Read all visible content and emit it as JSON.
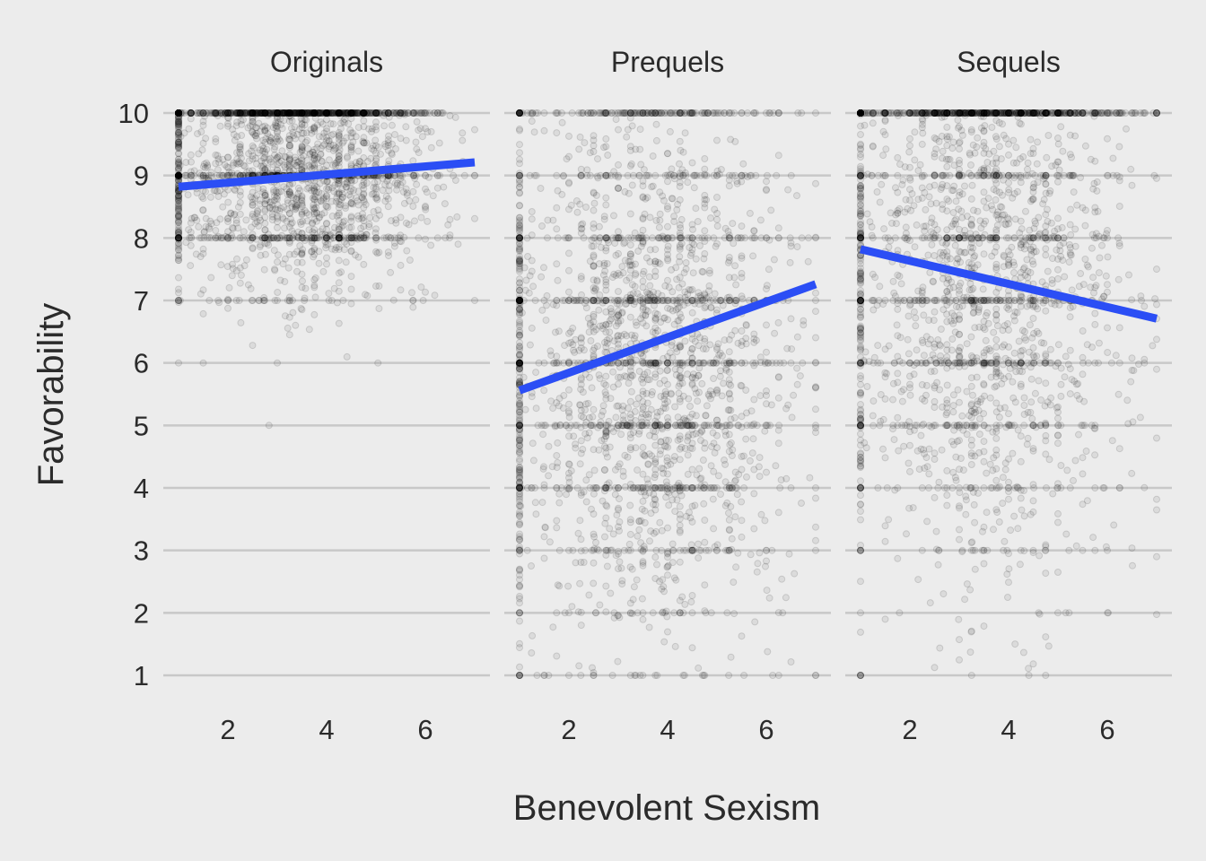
{
  "chart_data": {
    "type": "scatter",
    "xlabel": "Benevolent Sexism",
    "ylabel": "Favorability",
    "xlim": [
      0.6,
      7.3
    ],
    "ylim": [
      0.6,
      10.2
    ],
    "x_ticks": [
      2,
      4,
      6
    ],
    "y_ticks": [
      1,
      2,
      3,
      4,
      5,
      6,
      7,
      8,
      9,
      10
    ],
    "grid": "horizontal",
    "point_color": "#000000",
    "point_alpha": 0.08,
    "line_color": "#2b4ef5",
    "facets": [
      {
        "name": "Originals",
        "fit": {
          "x": [
            1,
            7
          ],
          "y": [
            8.82,
            9.21
          ]
        },
        "distribution": {
          "x_mean": 3.5,
          "x_sd": 1.3,
          "y_mean": 9.0,
          "y_sd": 0.9,
          "n": 2600,
          "x_floor_share": 0.1,
          "y_cap_share": 0.12
        }
      },
      {
        "name": "Prequels",
        "fit": {
          "x": [
            1,
            7
          ],
          "y": [
            5.56,
            7.26
          ]
        },
        "distribution": {
          "x_mean": 3.7,
          "x_sd": 1.4,
          "y_mean": 6.0,
          "y_sd": 2.1,
          "n": 2600,
          "x_floor_share": 0.1,
          "y_cap_share": 0.04
        }
      },
      {
        "name": "Sequels",
        "fit": {
          "x": [
            1,
            7
          ],
          "y": [
            7.82,
            6.71
          ]
        },
        "distribution": {
          "x_mean": 3.6,
          "x_sd": 1.4,
          "y_mean": 7.5,
          "y_sd": 2.4,
          "n": 2600,
          "x_floor_share": 0.1,
          "y_cap_share": 0.1
        }
      }
    ]
  }
}
